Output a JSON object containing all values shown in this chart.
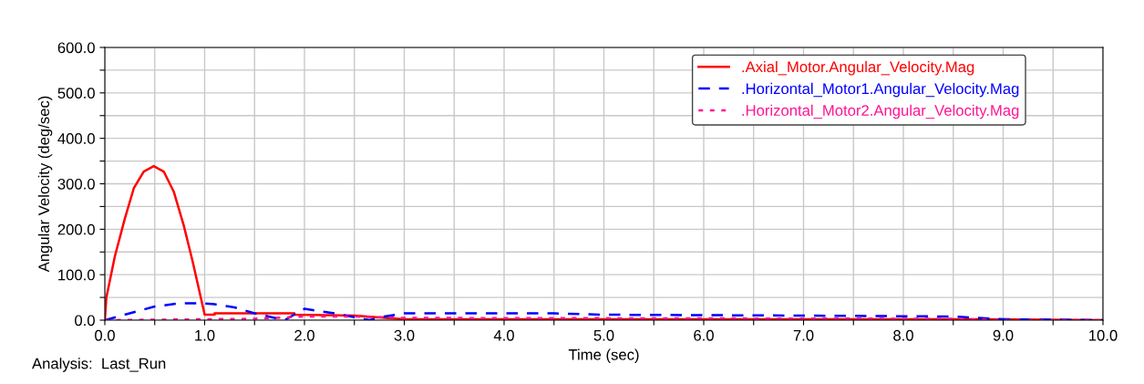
{
  "chart_data": {
    "type": "line",
    "xlabel": "Time (sec)",
    "ylabel": "Angular Velocity (deg/sec)",
    "annotations": [
      "Analysis:  Last_Run"
    ],
    "xlim": [
      0,
      10
    ],
    "ylim": [
      0,
      600
    ],
    "xticks": [
      {
        "value": 0,
        "label": "0.0"
      },
      {
        "value": 0.5,
        "label": null
      },
      {
        "value": 1,
        "label": "1.0"
      },
      {
        "value": 1.5,
        "label": null
      },
      {
        "value": 2,
        "label": "2.0"
      },
      {
        "value": 2.5,
        "label": null
      },
      {
        "value": 3,
        "label": "3.0"
      },
      {
        "value": 3.5,
        "label": null
      },
      {
        "value": 4,
        "label": "4.0"
      },
      {
        "value": 4.5,
        "label": null
      },
      {
        "value": 5,
        "label": "5.0"
      },
      {
        "value": 5.5,
        "label": null
      },
      {
        "value": 6,
        "label": "6.0"
      },
      {
        "value": 6.5,
        "label": null
      },
      {
        "value": 7,
        "label": "7.0"
      },
      {
        "value": 7.5,
        "label": null
      },
      {
        "value": 8,
        "label": "8.0"
      },
      {
        "value": 8.5,
        "label": null
      },
      {
        "value": 9,
        "label": "9.0"
      },
      {
        "value": 9.5,
        "label": null
      },
      {
        "value": 10,
        "label": "10.0"
      }
    ],
    "yticks": [
      {
        "value": 0,
        "label": "0.0"
      },
      {
        "value": 50,
        "label": null
      },
      {
        "value": 100,
        "label": "100.0"
      },
      {
        "value": 150,
        "label": null
      },
      {
        "value": 200,
        "label": "200.0"
      },
      {
        "value": 250,
        "label": null
      },
      {
        "value": 300,
        "label": "300.0"
      },
      {
        "value": 350,
        "label": null
      },
      {
        "value": 400,
        "label": "400.0"
      },
      {
        "value": 450,
        "label": null
      },
      {
        "value": 500,
        "label": "500.0"
      },
      {
        "value": 550,
        "label": null
      },
      {
        "value": 600,
        "label": "600.0"
      }
    ],
    "grid": true,
    "legend": "top right",
    "series": [
      {
        "name": ".Axial_Motor.Angular_Velocity.Mag",
        "color": "#ff0000",
        "line_style": "solid",
        "x": [
          0,
          0.015,
          0.1,
          0.2,
          0.29,
          0.39,
          0.49,
          0.59,
          0.69,
          0.79,
          0.88,
          0.99,
          1.0,
          1.1,
          1.1,
          1.9,
          1.9,
          2.5,
          3.0,
          8.8,
          10.0
        ],
        "values": [
          0,
          49,
          140,
          223,
          290,
          327,
          339,
          327,
          283,
          209,
          129,
          22,
          12,
          12,
          15,
          15,
          12,
          10,
          2,
          2,
          0
        ]
      },
      {
        "name": ".Horizontal_Motor1.Angular_Velocity.Mag",
        "color": "#0000ff",
        "line_style": "dashed",
        "x": [
          0,
          0.25,
          0.5,
          0.75,
          1.0,
          1.1,
          1.3,
          1.5,
          1.7,
          1.8,
          2.0,
          2.3,
          2.65,
          2.8,
          3.0,
          4.5,
          5.0,
          7.0,
          8.5,
          9.0,
          10.0
        ],
        "values": [
          0,
          15,
          30,
          37,
          37,
          35,
          28,
          15,
          5,
          0,
          25,
          15,
          0,
          8,
          15,
          15,
          12,
          10,
          8,
          2,
          0
        ]
      },
      {
        "name": ".Horizontal_Motor2.Angular_Velocity.Mag",
        "color": "#ff1493",
        "line_style": "dotted",
        "x": [
          0,
          1.0,
          1.5,
          2.0,
          2.5,
          3.0,
          8.5,
          9.0,
          10.0
        ],
        "values": [
          0,
          2,
          3,
          8,
          8,
          5,
          3,
          0,
          0
        ]
      }
    ]
  }
}
